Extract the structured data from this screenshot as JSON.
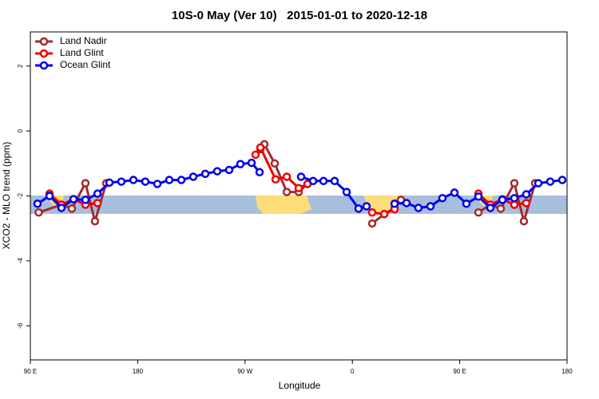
{
  "chart_data": {
    "type": "line",
    "title": "10S-0 May (Ver 10)   2015-01-01 to 2020-12-18",
    "xlabel": "Longitude",
    "ylabel": "XCO2 - MLO trend (ppm)",
    "xlim": [
      90,
      540
    ],
    "xticks": [
      {
        "value": 90,
        "label": "90 E"
      },
      {
        "value": 180,
        "label": "180"
      },
      {
        "value": 270,
        "label": "90 W"
      },
      {
        "value": 360,
        "label": "0"
      },
      {
        "value": 450,
        "label": "90 E"
      },
      {
        "value": 540,
        "label": "180"
      }
    ],
    "ylim": [
      -7.05,
      3.05
    ],
    "yticks": [
      2,
      0,
      -2,
      -4,
      -6
    ],
    "legend": "topleft",
    "series": [
      {
        "name": "Land Nadir",
        "color": "#a52a2a",
        "x": [
          97,
          116.1,
          124.8,
          136.2,
          144.2,
          153.6,
          null,
          282.9,
          286.2,
          294.9,
          305,
          315,
          322.4,
          null,
          376.6,
          386.7,
          395.4,
          400.7,
          null,
          465.7,
          475.7,
          484.4,
          495.8,
          503.8,
          513.2
        ],
        "values": [
          -2.51,
          -2.27,
          -2.39,
          -1.61,
          -2.78,
          -1.61,
          null,
          -0.56,
          -0.41,
          -1.0,
          -1.88,
          -1.88,
          -1.63,
          null,
          -2.85,
          -2.56,
          -2.37,
          -2.12,
          null,
          -2.51,
          -2.27,
          -2.39,
          -1.61,
          -2.78,
          -1.61
        ]
      },
      {
        "name": "Land Glint",
        "color": "#ee0000",
        "x": [
          106.1,
          116.1,
          126.2,
          136.2,
          146.3,
          null,
          278.8,
          282.9,
          295.6,
          305,
          315,
          322.4,
          null,
          376.6,
          386.7,
          395.4,
          null,
          465.7,
          475.7,
          485.8,
          495.8,
          505.8
        ],
        "values": [
          -1.93,
          -2.27,
          -2.1,
          -2.27,
          -2.22,
          null,
          -0.73,
          -0.51,
          -1.49,
          -1.41,
          -1.76,
          -1.63,
          null,
          -2.51,
          -2.56,
          -2.41,
          null,
          -1.93,
          -2.27,
          -2.1,
          -2.27,
          -2.22
        ]
      },
      {
        "name": "Ocean Glint",
        "color": "#0000ee",
        "x": [
          96,
          106.1,
          116.1,
          126.2,
          136.2,
          146.3,
          156.3,
          166.3,
          176.4,
          186.4,
          196.5,
          206.5,
          216.6,
          226.6,
          236.7,
          246.7,
          256.7,
          266.1,
          275.5,
          282.2,
          null,
          317,
          327.1,
          335.8,
          345.1,
          355.2,
          365.2,
          371.9,
          null,
          395.4,
          405.4,
          415.4,
          425.5,
          435.5,
          445.6,
          455.6,
          465.7,
          475.7,
          485.8,
          495.8,
          505.8,
          515.9,
          525.9,
          536
        ],
        "values": [
          -2.24,
          -2.0,
          -2.37,
          -2.1,
          -2.12,
          -1.93,
          -1.59,
          -1.56,
          -1.51,
          -1.56,
          -1.63,
          -1.51,
          -1.51,
          -1.41,
          -1.32,
          -1.24,
          -1.2,
          -1.02,
          -0.98,
          -1.27,
          null,
          -1.41,
          -1.54,
          -1.54,
          -1.54,
          -1.88,
          -2.39,
          -2.32,
          null,
          -2.24,
          -2.22,
          -2.37,
          -2.32,
          -2.07,
          -1.9,
          -2.24,
          -2.02,
          -2.37,
          -2.12,
          -2.07,
          -1.95,
          -1.61,
          -1.56,
          -1.51
        ]
      }
    ]
  }
}
